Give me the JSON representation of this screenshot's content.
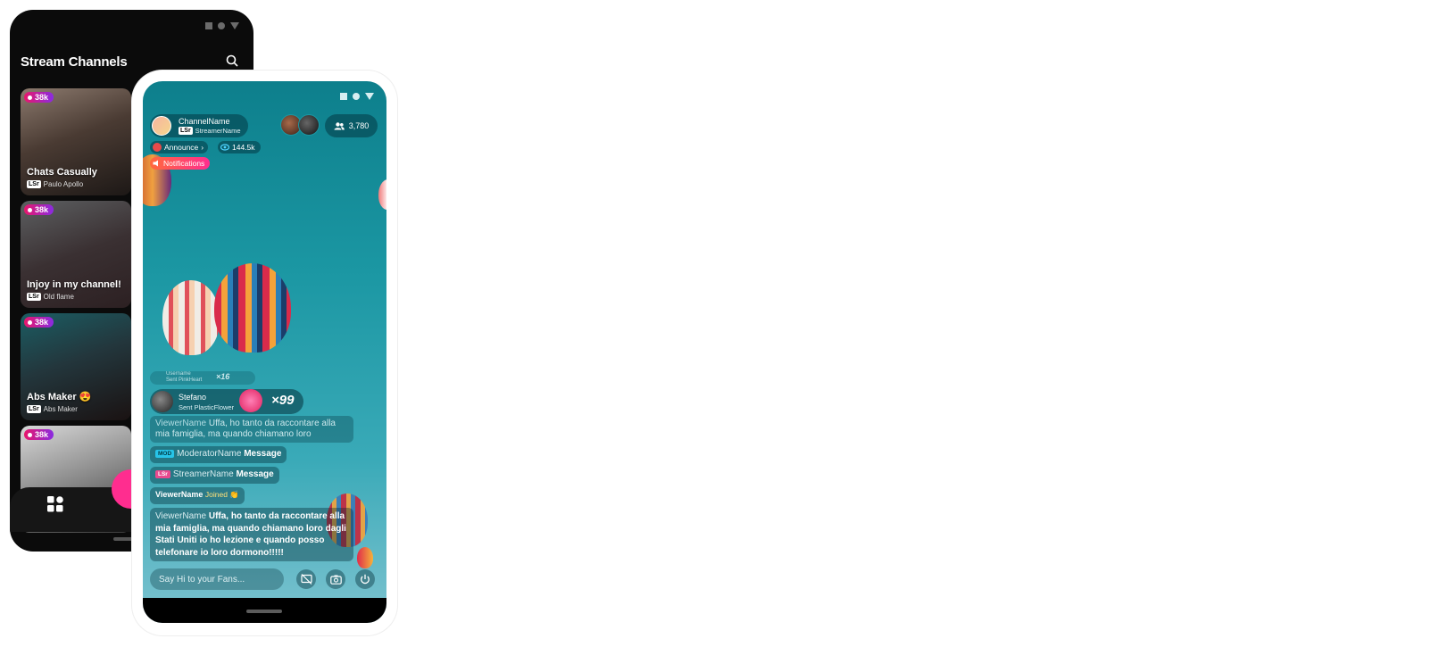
{
  "back_screen": {
    "title": "Stream Channels",
    "cards": [
      {
        "badge": "38k",
        "title": "Chats Casually",
        "user": "Paulo Apollo"
      },
      {
        "badge": "38k",
        "title": "Injoy in my channel!",
        "user": "Old flame"
      },
      {
        "badge": "38k",
        "title": "Abs Maker 😍",
        "user": "Abs Maker"
      },
      {
        "badge": "38k",
        "title": "",
        "user": ""
      }
    ],
    "lsr_label": "LSr"
  },
  "front_screen": {
    "channel_name": "ChannelName",
    "streamer_name": "StreamerName",
    "viewer_count": "3,780",
    "announce_label": "Announce",
    "views": "144.5k",
    "notifications_label": "Notifications",
    "gift_small": {
      "name": "Username",
      "sent": "Sent PinkHeart",
      "multiplier": "×16"
    },
    "gift_big": {
      "name": "Stefano",
      "sent": "Sent PlasticFlower",
      "multiplier": "×99"
    },
    "messages": [
      {
        "name": "ViewerName",
        "text": "Uffa, ho tanto da raccontare alla mia famiglia, ma quando chiamano loro"
      },
      {
        "badge": "MOD",
        "name": "ModeratorName",
        "text": "Message"
      },
      {
        "badge": "LSr",
        "name": "StreamerName",
        "text": "Message"
      },
      {
        "name": "ViewerName",
        "text": "Joined 👏"
      },
      {
        "name": "ViewerName",
        "text": "Uffa, ho tanto da raccontare alla mia famiglia, ma quando chiamano loro dagli Stati Uniti io ho lezione e quando posso telefonare io loro dormono!!!!!"
      }
    ],
    "input_placeholder": "Say Hi to your Fans..."
  },
  "colors": {
    "accent_pink": "#ff2d8f",
    "teal": "#1b97a3"
  }
}
